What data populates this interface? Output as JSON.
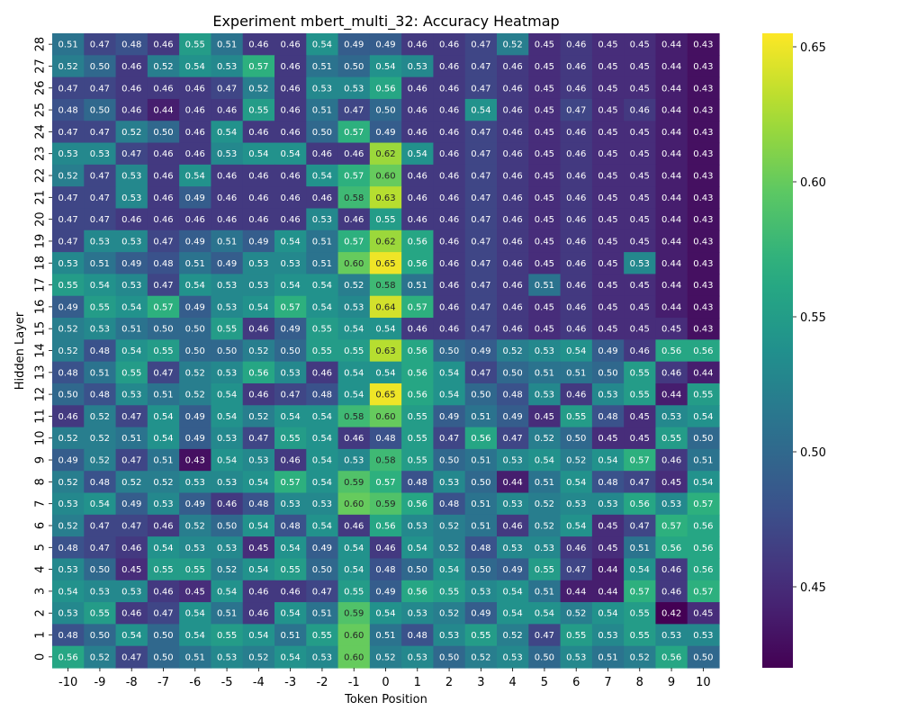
{
  "chart_data": {
    "type": "heatmap",
    "title": "Experiment mbert_multi_32: Accuracy Heatmap",
    "xlabel": "Token Position",
    "ylabel": "Hidden Layer",
    "x": [
      "-10",
      "-9",
      "-8",
      "-7",
      "-6",
      "-5",
      "-4",
      "-3",
      "-2",
      "-1",
      "0",
      "1",
      "2",
      "3",
      "4",
      "5",
      "6",
      "7",
      "8",
      "9",
      "10"
    ],
    "y_top_to_bottom": [
      "28",
      "27",
      "26",
      "25",
      "24",
      "23",
      "22",
      "21",
      "20",
      "19",
      "18",
      "17",
      "16",
      "15",
      "14",
      "13",
      "12",
      "11",
      "10",
      "9",
      "8",
      "7",
      "6",
      "5",
      "4",
      "3",
      "2",
      "1",
      "0"
    ],
    "values": [
      [
        0.51,
        0.47,
        0.48,
        0.46,
        0.55,
        0.51,
        0.46,
        0.46,
        0.54,
        0.49,
        0.49,
        0.46,
        0.46,
        0.47,
        0.52,
        0.45,
        0.46,
        0.45,
        0.45,
        0.44,
        0.43
      ],
      [
        0.52,
        0.5,
        0.46,
        0.52,
        0.54,
        0.53,
        0.57,
        0.46,
        0.51,
        0.5,
        0.54,
        0.53,
        0.46,
        0.47,
        0.46,
        0.45,
        0.46,
        0.45,
        0.45,
        0.44,
        0.43
      ],
      [
        0.47,
        0.47,
        0.46,
        0.46,
        0.46,
        0.47,
        0.52,
        0.46,
        0.53,
        0.53,
        0.56,
        0.46,
        0.46,
        0.47,
        0.46,
        0.45,
        0.46,
        0.45,
        0.45,
        0.44,
        0.43
      ],
      [
        0.48,
        0.5,
        0.46,
        0.44,
        0.46,
        0.46,
        0.55,
        0.46,
        0.51,
        0.47,
        0.5,
        0.46,
        0.46,
        0.54,
        0.46,
        0.45,
        0.47,
        0.45,
        0.46,
        0.44,
        0.43
      ],
      [
        0.47,
        0.47,
        0.52,
        0.5,
        0.46,
        0.54,
        0.46,
        0.46,
        0.5,
        0.57,
        0.49,
        0.46,
        0.46,
        0.47,
        0.46,
        0.45,
        0.46,
        0.45,
        0.45,
        0.44,
        0.43
      ],
      [
        0.53,
        0.53,
        0.47,
        0.46,
        0.46,
        0.53,
        0.54,
        0.54,
        0.46,
        0.46,
        0.62,
        0.54,
        0.46,
        0.47,
        0.46,
        0.45,
        0.46,
        0.45,
        0.45,
        0.44,
        0.43
      ],
      [
        0.52,
        0.47,
        0.53,
        0.46,
        0.54,
        0.46,
        0.46,
        0.46,
        0.54,
        0.57,
        0.6,
        0.46,
        0.46,
        0.47,
        0.46,
        0.45,
        0.46,
        0.45,
        0.45,
        0.44,
        0.43
      ],
      [
        0.47,
        0.47,
        0.53,
        0.46,
        0.49,
        0.46,
        0.46,
        0.46,
        0.46,
        0.58,
        0.63,
        0.46,
        0.46,
        0.47,
        0.46,
        0.45,
        0.46,
        0.45,
        0.45,
        0.44,
        0.43
      ],
      [
        0.47,
        0.47,
        0.46,
        0.46,
        0.46,
        0.46,
        0.46,
        0.46,
        0.53,
        0.46,
        0.55,
        0.46,
        0.46,
        0.47,
        0.46,
        0.45,
        0.46,
        0.45,
        0.45,
        0.44,
        0.43
      ],
      [
        0.47,
        0.53,
        0.53,
        0.47,
        0.49,
        0.51,
        0.49,
        0.54,
        0.51,
        0.57,
        0.62,
        0.56,
        0.46,
        0.47,
        0.46,
        0.45,
        0.46,
        0.45,
        0.45,
        0.44,
        0.43
      ],
      [
        0.53,
        0.51,
        0.49,
        0.48,
        0.51,
        0.49,
        0.53,
        0.53,
        0.51,
        0.6,
        0.65,
        0.56,
        0.46,
        0.47,
        0.46,
        0.45,
        0.46,
        0.45,
        0.53,
        0.44,
        0.43
      ],
      [
        0.55,
        0.54,
        0.53,
        0.47,
        0.54,
        0.53,
        0.53,
        0.54,
        0.54,
        0.52,
        0.58,
        0.51,
        0.46,
        0.47,
        0.46,
        0.51,
        0.46,
        0.45,
        0.45,
        0.44,
        0.43
      ],
      [
        0.49,
        0.55,
        0.54,
        0.57,
        0.49,
        0.53,
        0.54,
        0.57,
        0.54,
        0.53,
        0.64,
        0.57,
        0.46,
        0.47,
        0.46,
        0.45,
        0.46,
        0.45,
        0.45,
        0.44,
        0.43
      ],
      [
        0.52,
        0.53,
        0.51,
        0.5,
        0.5,
        0.55,
        0.46,
        0.49,
        0.55,
        0.54,
        0.54,
        0.46,
        0.46,
        0.47,
        0.46,
        0.45,
        0.46,
        0.45,
        0.45,
        0.45,
        0.43
      ],
      [
        0.52,
        0.48,
        0.54,
        0.55,
        0.5,
        0.5,
        0.52,
        0.5,
        0.55,
        0.55,
        0.63,
        0.56,
        0.5,
        0.49,
        0.52,
        0.53,
        0.54,
        0.49,
        0.46,
        0.56,
        0.56
      ],
      [
        0.48,
        0.51,
        0.55,
        0.47,
        0.52,
        0.53,
        0.56,
        0.53,
        0.46,
        0.54,
        0.54,
        0.56,
        0.54,
        0.47,
        0.5,
        0.51,
        0.51,
        0.5,
        0.55,
        0.46,
        0.44
      ],
      [
        0.5,
        0.48,
        0.53,
        0.51,
        0.52,
        0.54,
        0.46,
        0.47,
        0.48,
        0.54,
        0.65,
        0.56,
        0.54,
        0.5,
        0.48,
        0.53,
        0.46,
        0.53,
        0.55,
        0.44,
        0.55
      ],
      [
        0.46,
        0.52,
        0.47,
        0.54,
        0.49,
        0.54,
        0.52,
        0.54,
        0.54,
        0.58,
        0.6,
        0.55,
        0.49,
        0.51,
        0.49,
        0.45,
        0.55,
        0.48,
        0.45,
        0.53,
        0.54
      ],
      [
        0.52,
        0.52,
        0.51,
        0.54,
        0.49,
        0.53,
        0.47,
        0.55,
        0.54,
        0.46,
        0.48,
        0.55,
        0.47,
        0.56,
        0.47,
        0.52,
        0.5,
        0.45,
        0.45,
        0.55,
        0.5
      ],
      [
        0.49,
        0.52,
        0.47,
        0.51,
        0.43,
        0.54,
        0.53,
        0.46,
        0.54,
        0.53,
        0.58,
        0.55,
        0.5,
        0.51,
        0.53,
        0.54,
        0.52,
        0.54,
        0.57,
        0.46,
        0.51
      ],
      [
        0.52,
        0.48,
        0.52,
        0.52,
        0.53,
        0.53,
        0.54,
        0.57,
        0.54,
        0.59,
        0.57,
        0.48,
        0.53,
        0.5,
        0.44,
        0.51,
        0.54,
        0.48,
        0.47,
        0.45,
        0.54
      ],
      [
        0.53,
        0.54,
        0.49,
        0.53,
        0.49,
        0.46,
        0.48,
        0.53,
        0.53,
        0.6,
        0.59,
        0.56,
        0.48,
        0.51,
        0.53,
        0.52,
        0.53,
        0.53,
        0.56,
        0.53,
        0.57
      ],
      [
        0.52,
        0.47,
        0.47,
        0.46,
        0.52,
        0.5,
        0.54,
        0.48,
        0.54,
        0.46,
        0.56,
        0.53,
        0.52,
        0.51,
        0.46,
        0.52,
        0.54,
        0.45,
        0.47,
        0.57,
        0.56
      ],
      [
        0.48,
        0.47,
        0.46,
        0.54,
        0.53,
        0.53,
        0.45,
        0.54,
        0.49,
        0.54,
        0.46,
        0.54,
        0.52,
        0.48,
        0.53,
        0.53,
        0.46,
        0.45,
        0.51,
        0.56,
        0.56
      ],
      [
        0.53,
        0.5,
        0.45,
        0.55,
        0.55,
        0.52,
        0.54,
        0.55,
        0.5,
        0.54,
        0.48,
        0.5,
        0.54,
        0.5,
        0.49,
        0.55,
        0.47,
        0.44,
        0.54,
        0.46,
        0.56
      ],
      [
        0.54,
        0.53,
        0.53,
        0.46,
        0.45,
        0.54,
        0.46,
        0.46,
        0.47,
        0.55,
        0.49,
        0.56,
        0.55,
        0.53,
        0.54,
        0.51,
        0.44,
        0.44,
        0.57,
        0.46,
        0.57
      ],
      [
        0.53,
        0.55,
        0.46,
        0.47,
        0.54,
        0.51,
        0.46,
        0.54,
        0.51,
        0.59,
        0.54,
        0.53,
        0.52,
        0.49,
        0.54,
        0.54,
        0.52,
        0.54,
        0.55,
        0.42,
        0.45
      ],
      [
        0.48,
        0.5,
        0.54,
        0.5,
        0.54,
        0.55,
        0.54,
        0.51,
        0.55,
        0.6,
        0.51,
        0.48,
        0.53,
        0.55,
        0.52,
        0.47,
        0.55,
        0.53,
        0.55,
        0.53,
        0.53
      ],
      [
        0.56,
        0.52,
        0.47,
        0.5,
        0.51,
        0.53,
        0.52,
        0.54,
        0.53,
        0.6,
        0.52,
        0.53,
        0.5,
        0.52,
        0.53,
        0.5,
        0.53,
        0.51,
        0.52,
        0.56,
        0.5
      ]
    ],
    "vmin": 0.42,
    "vmax": 0.655,
    "colormap": "viridis",
    "colorbar_ticks": [
      "0.45",
      "0.50",
      "0.55",
      "0.60",
      "0.65"
    ]
  }
}
